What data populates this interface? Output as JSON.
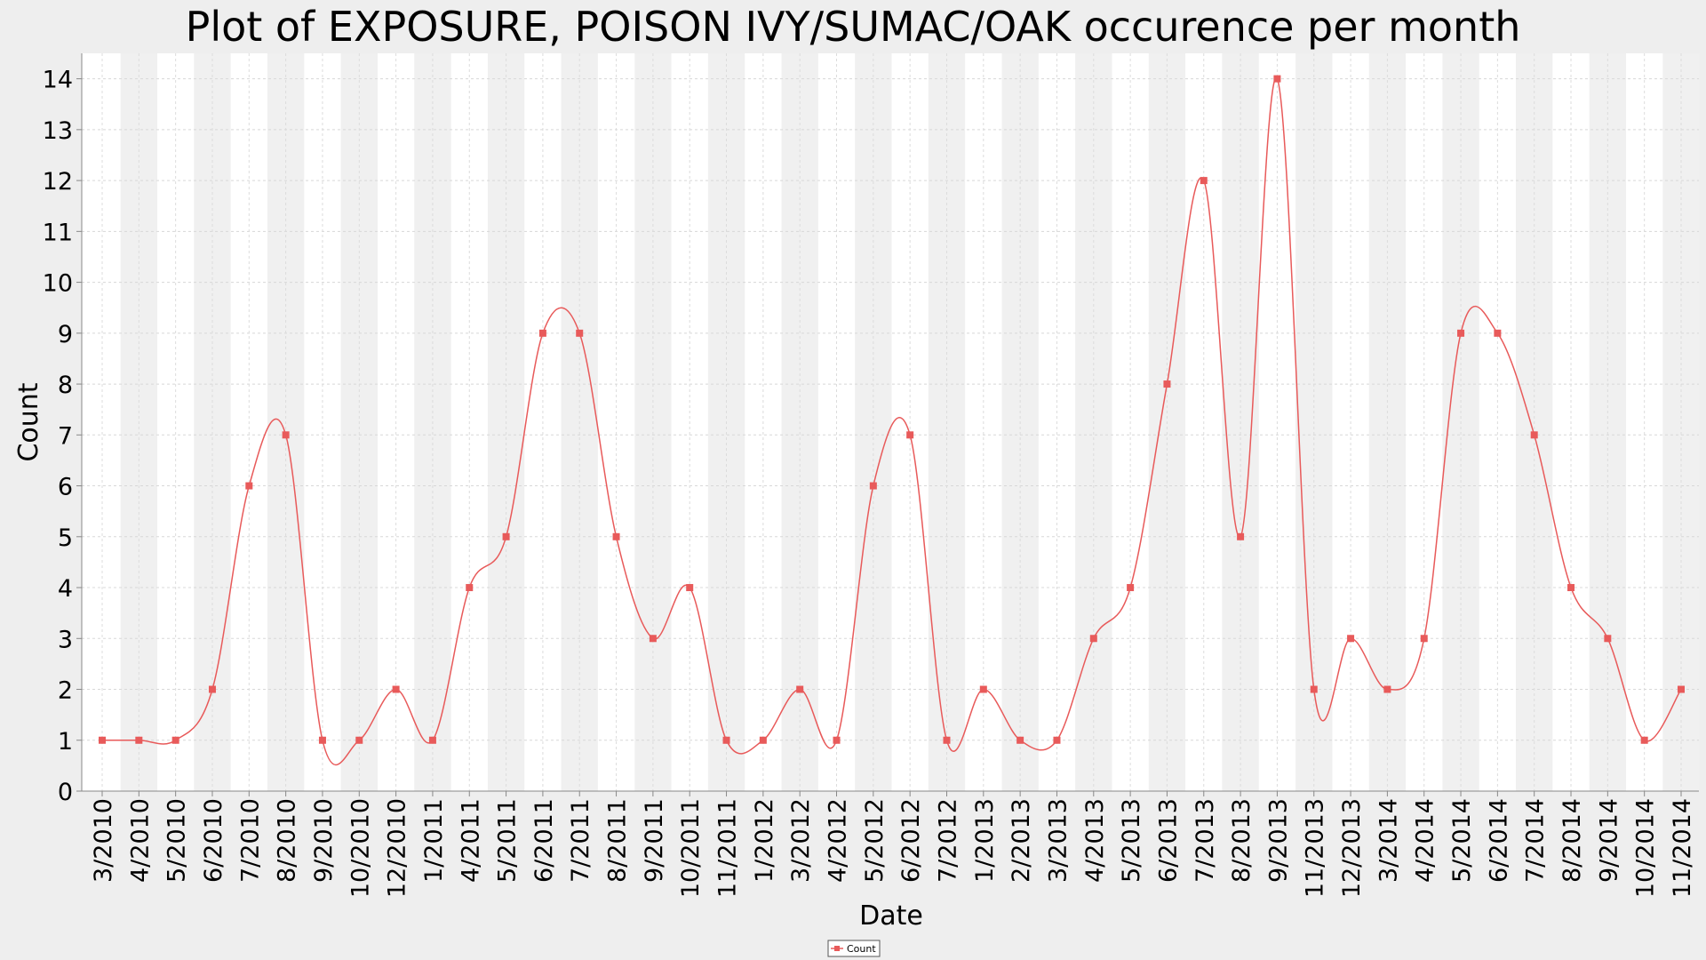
{
  "chart_data": {
    "type": "line",
    "title": "Plot of EXPOSURE, POISON IVY/SUMAC/OAK occurence per month",
    "xlabel": "Date",
    "ylabel": "Count",
    "ylim": [
      0,
      14.5
    ],
    "yticks": [
      0,
      1,
      2,
      3,
      4,
      5,
      6,
      7,
      8,
      9,
      10,
      11,
      12,
      13,
      14
    ],
    "grid": true,
    "legend_position": "bottom-center",
    "categories": [
      "3/2010",
      "4/2010",
      "5/2010",
      "6/2010",
      "7/2010",
      "8/2010",
      "9/2010",
      "10/2010",
      "12/2010",
      "1/2011",
      "4/2011",
      "5/2011",
      "6/2011",
      "7/2011",
      "8/2011",
      "9/2011",
      "10/2011",
      "11/2011",
      "1/2012",
      "3/2012",
      "4/2012",
      "5/2012",
      "6/2012",
      "7/2012",
      "1/2013",
      "2/2013",
      "3/2013",
      "4/2013",
      "5/2013",
      "6/2013",
      "7/2013",
      "8/2013",
      "9/2013",
      "11/2013",
      "12/2013",
      "3/2014",
      "4/2014",
      "5/2014",
      "6/2014",
      "7/2014",
      "8/2014",
      "9/2014",
      "10/2014",
      "11/2014"
    ],
    "series": [
      {
        "name": "Count",
        "color": "#e85a5a",
        "values": [
          1,
          1,
          1,
          2,
          6,
          7,
          1,
          1,
          2,
          1,
          4,
          5,
          9,
          9,
          5,
          3,
          4,
          1,
          1,
          2,
          1,
          6,
          7,
          1,
          2,
          1,
          1,
          3,
          4,
          8,
          12,
          5,
          14,
          2,
          3,
          2,
          3,
          9,
          9,
          7,
          4,
          3,
          1,
          2
        ]
      }
    ]
  }
}
